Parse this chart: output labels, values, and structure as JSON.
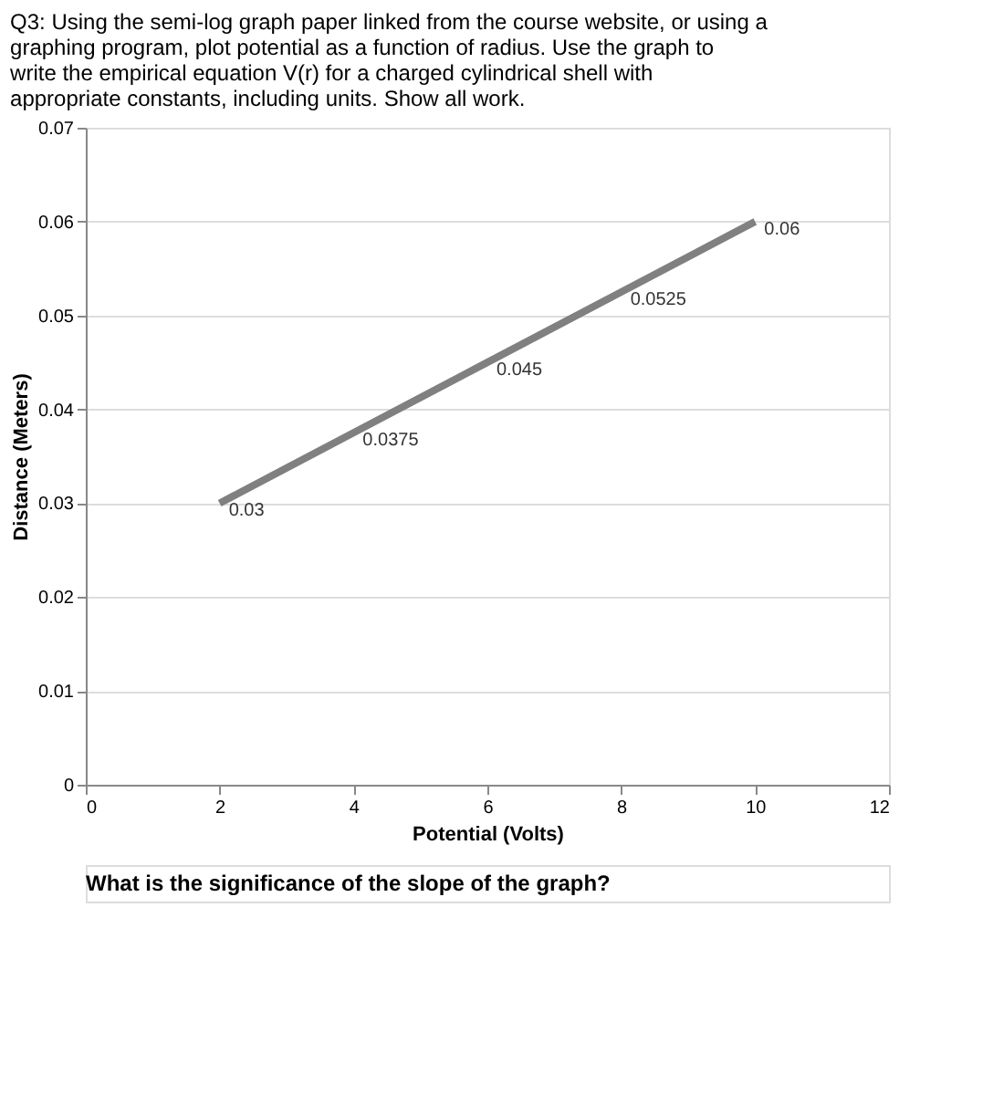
{
  "chart_data": {
    "type": "line",
    "x": [
      2,
      4,
      6,
      8,
      10
    ],
    "series": [
      {
        "color": "#808080",
        "values": [
          0.03,
          0.0375,
          0.045,
          0.0525,
          0.06
        ]
      }
    ],
    "xlabel": "Potential (Volts)",
    "ylabel": "Distance (Meters)",
    "xlim": [
      0,
      12
    ],
    "xticks": [
      0,
      2,
      4,
      6,
      8,
      10,
      12
    ],
    "ylim": [
      0,
      0.07
    ],
    "yticks": [
      0,
      0.01,
      0.02,
      0.03,
      0.04,
      0.05,
      0.06,
      0.07
    ],
    "grid": "y",
    "data_labels": true,
    "marker": "none",
    "line_style": "solid",
    "annotations": [
      "Q3: Using the semi-log graph paper linked from the course website, or using a graphing program, plot potential as a function of radius. Use the graph to write the empirical equation V(r) for a charged cylindrical shell with appropriate constants, including units. Show all work.",
      "What is the significance of the slope of the graph?"
    ]
  }
}
